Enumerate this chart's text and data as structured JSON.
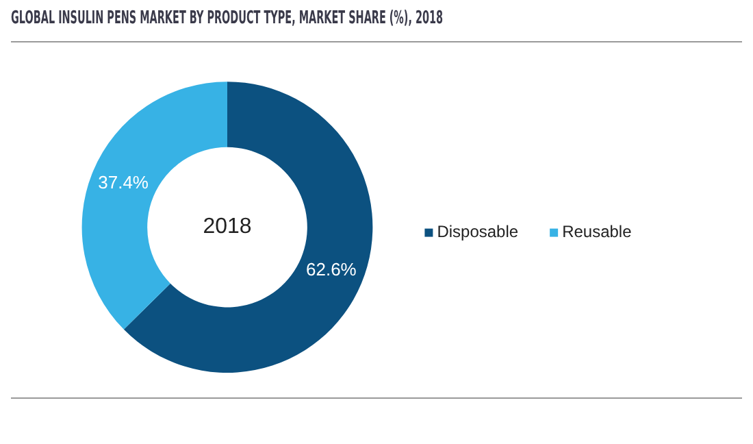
{
  "chart_data": {
    "type": "donut",
    "title": "GLOBAL INSULIN PENS MARKET BY PRODUCT TYPE, MARKET SHARE (%), 2018",
    "categories": [
      "Disposable",
      "Reusable"
    ],
    "values": [
      62.6,
      37.4
    ],
    "colors": [
      "#0c5180",
      "#37b2e5"
    ],
    "value_labels": [
      "62.6%",
      "37.4%"
    ],
    "annotations": [
      "2018"
    ],
    "legend": "right"
  }
}
